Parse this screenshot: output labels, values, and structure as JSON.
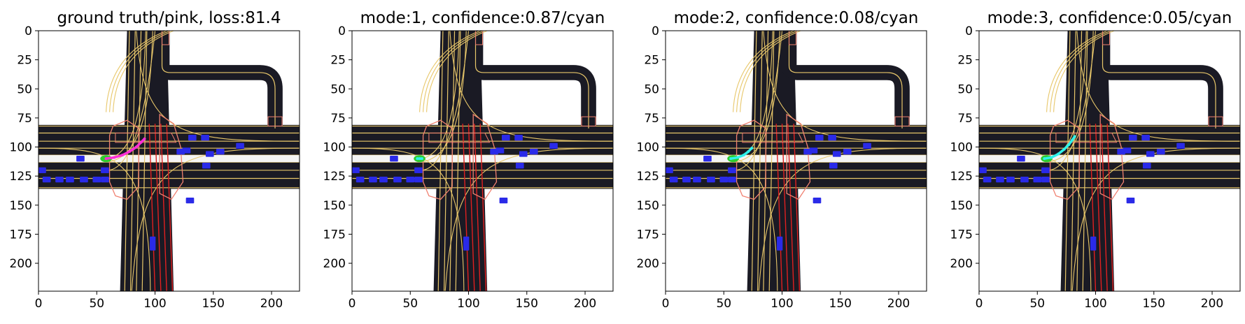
{
  "chart_data": [
    {
      "type": "image",
      "title": "ground truth/pink, loss:81.4",
      "xlim": [
        0,
        224
      ],
      "ylim": [
        224,
        0
      ],
      "xticks": [
        0,
        50,
        100,
        150,
        200
      ],
      "yticks": [
        0,
        25,
        50,
        75,
        100,
        125,
        150,
        175,
        200
      ],
      "trajectory_color": "#ff2fd6",
      "trajectory": [
        [
          58,
          110
        ],
        [
          65,
          109
        ],
        [
          72,
          107
        ],
        [
          78,
          104
        ],
        [
          84,
          100
        ],
        [
          88,
          96
        ],
        [
          91,
          93
        ]
      ]
    },
    {
      "type": "image",
      "title": "mode:1, confidence:0.87/cyan",
      "xlim": [
        0,
        224
      ],
      "ylim": [
        224,
        0
      ],
      "xticks": [
        0,
        50,
        100,
        150,
        200
      ],
      "yticks": [
        0,
        25,
        50,
        75,
        100,
        125,
        150,
        175,
        200
      ],
      "trajectory_color": "#2ff2ea",
      "trajectory": [
        [
          56,
          110
        ],
        [
          58,
          110
        ],
        [
          60,
          110
        ]
      ]
    },
    {
      "type": "image",
      "title": "mode:2, confidence:0.08/cyan",
      "xlim": [
        0,
        224
      ],
      "ylim": [
        224,
        0
      ],
      "xticks": [
        0,
        50,
        100,
        150,
        200
      ],
      "yticks": [
        0,
        25,
        50,
        75,
        100,
        125,
        150,
        175,
        200
      ],
      "trajectory_color": "#2ff2ea",
      "trajectory": [
        [
          56,
          110
        ],
        [
          62,
          109
        ],
        [
          67,
          107
        ],
        [
          71,
          104
        ],
        [
          74,
          101
        ]
      ]
    },
    {
      "type": "image",
      "title": "mode:3, confidence:0.05/cyan",
      "xlim": [
        0,
        224
      ],
      "ylim": [
        224,
        0
      ],
      "xticks": [
        0,
        50,
        100,
        150,
        200
      ],
      "yticks": [
        0,
        25,
        50,
        75,
        100,
        125,
        150,
        175,
        200
      ],
      "trajectory_color": "#2ff2ea",
      "trajectory": [
        [
          56,
          110
        ],
        [
          62,
          109
        ],
        [
          68,
          106
        ],
        [
          73,
          102
        ],
        [
          77,
          98
        ],
        [
          80,
          94
        ],
        [
          82,
          91
        ]
      ]
    }
  ],
  "scene": {
    "road_color": "#1a1a24",
    "lane_color": "#e8c76a",
    "crosswalk_color": "#f08070",
    "red_lane_color": "#e02020",
    "vehicle_color": "#2a2ae8",
    "ego_color": "#2ecc2e",
    "vehicles": [
      [
        36,
        110
      ],
      [
        3,
        120
      ],
      [
        7,
        128
      ],
      [
        18,
        128
      ],
      [
        27,
        128
      ],
      [
        39,
        128
      ],
      [
        50,
        128
      ],
      [
        57,
        120
      ],
      [
        57,
        128
      ],
      [
        122,
        104
      ],
      [
        127,
        103
      ],
      [
        132,
        92
      ],
      [
        143,
        92
      ],
      [
        147,
        106
      ],
      [
        156,
        104
      ],
      [
        173,
        99
      ],
      [
        144,
        116
      ],
      [
        130,
        146
      ],
      [
        98,
        183
      ]
    ],
    "ego": [
      58,
      110
    ]
  }
}
